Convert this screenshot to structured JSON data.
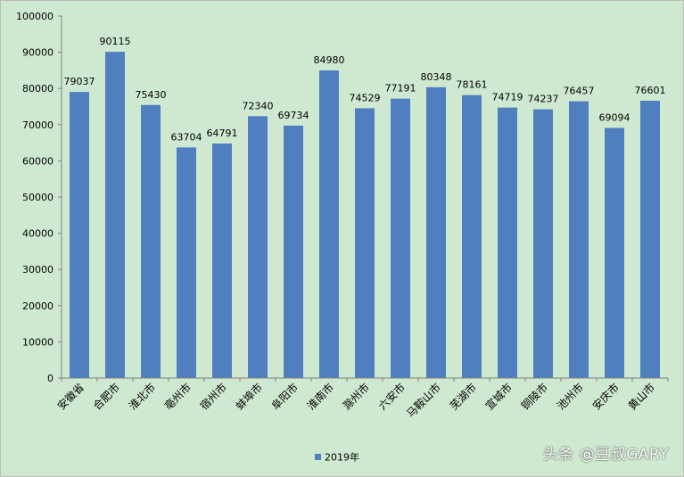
{
  "chart_data": {
    "type": "bar",
    "title": "",
    "xlabel": "",
    "ylabel": "",
    "categories": [
      "安徽省",
      "合肥市",
      "淮北市",
      "亳州市",
      "宿州市",
      "蚌埠市",
      "阜阳市",
      "淮南市",
      "滁州市",
      "六安市",
      "马鞍山市",
      "芜湖市",
      "宣城市",
      "铜陵市",
      "池州市",
      "安庆市",
      "黄山市"
    ],
    "series": [
      {
        "name": "2019年",
        "values": [
          79037,
          90115,
          75430,
          63704,
          64791,
          72340,
          69734,
          84980,
          74529,
          77191,
          80348,
          78161,
          74719,
          74237,
          76457,
          69094,
          76601
        ]
      }
    ],
    "ylim": [
      0,
      100000
    ],
    "yticks": [
      0,
      10000,
      20000,
      30000,
      40000,
      50000,
      60000,
      70000,
      80000,
      90000,
      100000
    ],
    "grid": false,
    "legend": "bottom",
    "colors": {
      "bar": "#4f7fbf",
      "background": "#cfe9d1",
      "axis": "#7f7f7f",
      "text": "#000000"
    }
  },
  "watermark": "头条 @豆叔GARY"
}
